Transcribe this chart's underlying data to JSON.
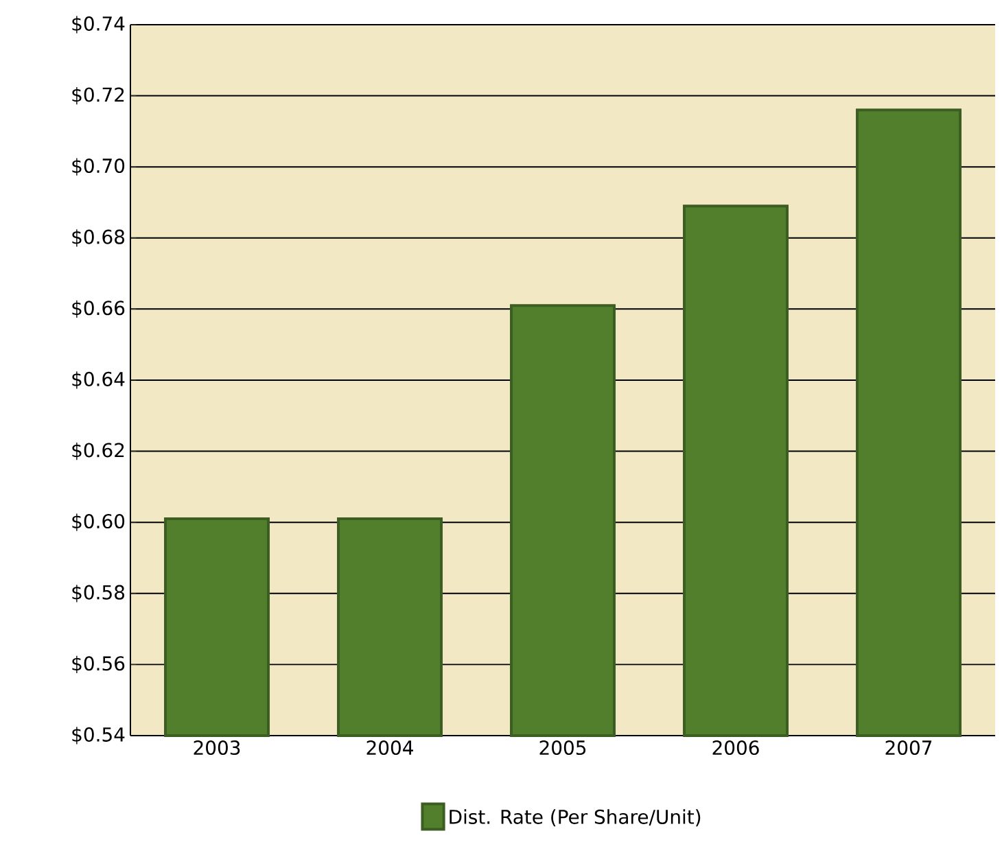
{
  "chart_data": {
    "type": "bar",
    "categories": [
      "2003",
      "2004",
      "2005",
      "2006",
      "2007"
    ],
    "series": [
      {
        "name": "Dist. Rate (Per Share/Unit)",
        "color": "#527f2c",
        "values": [
          0.601,
          0.601,
          0.661,
          0.689,
          0.716
        ]
      }
    ],
    "ylim": [
      0.54,
      0.74
    ],
    "yticks": [
      {
        "value": 0.54,
        "label": "$0.54"
      },
      {
        "value": 0.56,
        "label": "$0.56"
      },
      {
        "value": 0.58,
        "label": "$0.58"
      },
      {
        "value": 0.6,
        "label": "$0.60"
      },
      {
        "value": 0.62,
        "label": "$0.62"
      },
      {
        "value": 0.64,
        "label": "$0.64"
      },
      {
        "value": 0.66,
        "label": "$0.66"
      },
      {
        "value": 0.68,
        "label": "$0.68"
      },
      {
        "value": 0.7,
        "label": "$0.70"
      },
      {
        "value": 0.72,
        "label": "$0.72"
      },
      {
        "value": 0.74,
        "label": "$0.74"
      }
    ],
    "grid": "y",
    "legend": "bottom"
  }
}
